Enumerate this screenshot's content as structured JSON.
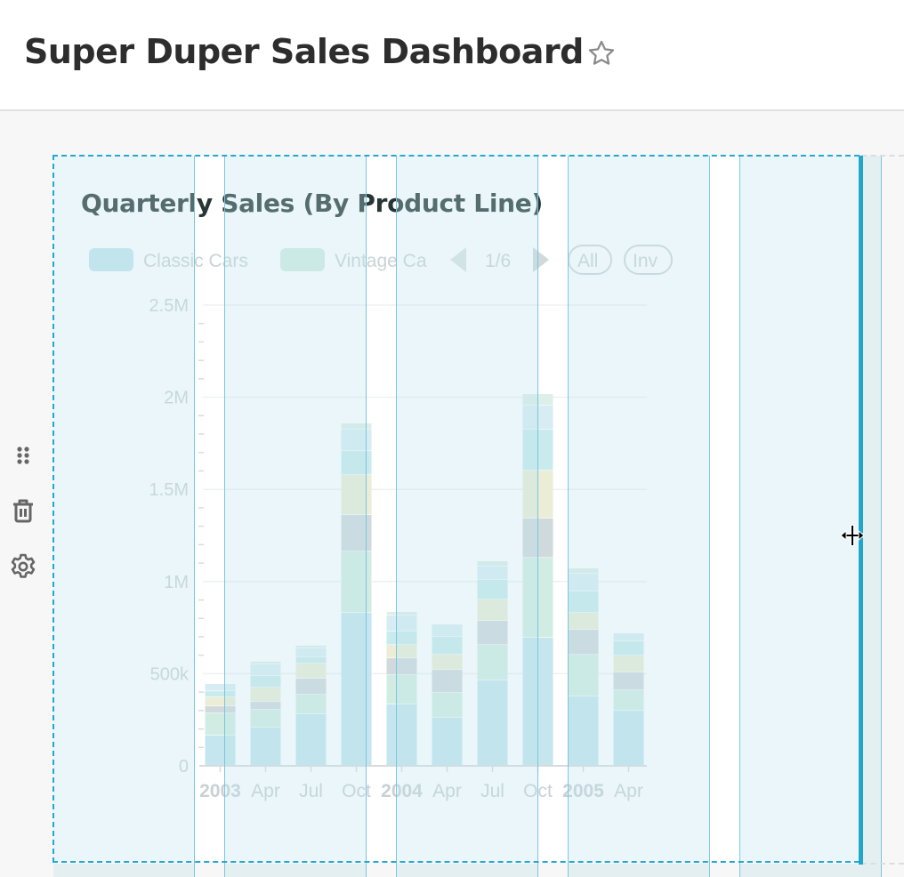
{
  "header": {
    "title": "Super Duper Sales Dashboard",
    "favorite_icon": "star-outline-icon"
  },
  "sidebar_controls": [
    {
      "icon": "drag-handle-icon"
    },
    {
      "icon": "trash-icon"
    },
    {
      "icon": "gear-icon"
    }
  ],
  "chart": {
    "title": "Quarterly Sales (By Product Line)",
    "legend": {
      "items": [
        {
          "label": "Classic Cars",
          "color": "#c5e6ee"
        },
        {
          "label": "Vintage Ca",
          "color": "#d1ede3"
        }
      ],
      "page": "1/6",
      "all_label": "All",
      "inv_label": "Inv"
    }
  },
  "chart_data": {
    "type": "bar",
    "stacked": true,
    "title": "Quarterly Sales (By Product Line)",
    "categories": [
      "2003",
      "Apr",
      "Jul",
      "Oct",
      "2004",
      "Apr",
      "Jul",
      "Oct",
      "2005",
      "Apr"
    ],
    "bold_categories": [
      "2003",
      "2004",
      "2005"
    ],
    "y_ticks": [
      "0",
      "500k",
      "1M",
      "1.5M",
      "2M",
      "2.5M"
    ],
    "ylim": [
      0,
      2500000
    ],
    "grid": true,
    "legend_position": "top-left",
    "series": [
      {
        "name": "Classic Cars",
        "color": "#c5e6ee",
        "values": [
          164000,
          208000,
          280000,
          830000,
          333000,
          261000,
          463000,
          695000,
          376000,
          299000
        ]
      },
      {
        "name": "Vintage Cars",
        "color": "#d1ede3",
        "values": [
          121000,
          96000,
          106000,
          333000,
          159000,
          135000,
          193000,
          434000,
          227000,
          111000
        ]
      },
      {
        "color": "#d0d9dc",
        "values": [
          38000,
          43000,
          87000,
          198000,
          92000,
          125000,
          131000,
          213000,
          135000,
          97000
        ]
      },
      {
        "color": "#ebedd6",
        "values": [
          49000,
          78000,
          82000,
          217000,
          72000,
          82000,
          115000,
          260000,
          92000,
          91000
        ]
      },
      {
        "color": "#c9ebee",
        "values": [
          33000,
          63000,
          34000,
          130000,
          73000,
          97000,
          108000,
          222000,
          116000,
          78000
        ]
      },
      {
        "color": "#d7edf3",
        "values": [
          39000,
          62000,
          48000,
          116000,
          86000,
          67000,
          73000,
          131000,
          96000,
          43000
        ]
      },
      {
        "color": "#dcefe9",
        "values": [
          0,
          15000,
          15000,
          34000,
          20000,
          0,
          27000,
          62000,
          29000,
          0
        ]
      }
    ]
  }
}
